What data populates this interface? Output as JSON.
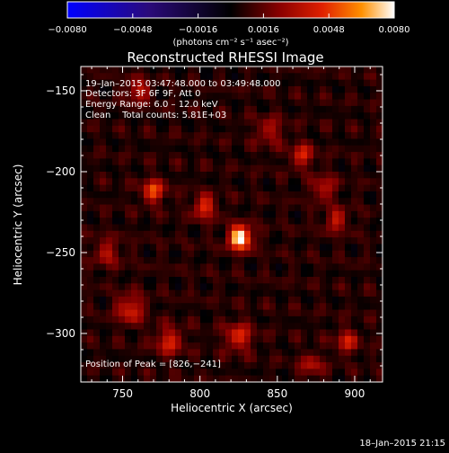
{
  "chart_data": {
    "type": "heatmap",
    "title": "Reconstructed RHESSI Image",
    "xlabel": "Heliocentric X (arcsec)",
    "ylabel": "Heliocentric Y (arcsec)",
    "xlim": [
      723,
      918
    ],
    "ylim": [
      -330,
      -135
    ],
    "x_ticks": [
      750,
      800,
      850,
      900
    ],
    "x_tick_labels": [
      "750",
      "800",
      "850",
      "900"
    ],
    "y_ticks": [
      -150,
      -200,
      -250,
      -300
    ],
    "y_tick_labels": [
      "−150",
      "−200",
      "−250",
      "−300"
    ],
    "info_lines": [
      "19–Jan–2015 03:47:48.000 to 03:49:48.000",
      "Detectors: 3F 6F 9F, Att 0",
      "Energy Range: 6.0 – 12.0 keV",
      "Clean    Total counts: 5.81E+03"
    ],
    "peak_label": "Position of Peak = [826,−241]",
    "peak": [
      826,
      -241
    ],
    "colorbar": {
      "min": -0.008,
      "max": 0.008,
      "ticks": [
        -0.008,
        -0.0048,
        -0.0016,
        0.0016,
        0.0048,
        0.008
      ],
      "tick_labels": [
        "−0.0080",
        "−0.0048",
        "−0.0016",
        "0.0016",
        "0.0048",
        "0.0080"
      ],
      "units": "(photons cm⁻² s⁻¹ asec⁻²)"
    },
    "sources": [
      {
        "x": 826,
        "y": -241,
        "amp": 0.008,
        "sigma": 5
      },
      {
        "x": 770,
        "y": -212,
        "amp": 0.0044,
        "sigma": 5
      },
      {
        "x": 803,
        "y": -222,
        "amp": 0.004,
        "sigma": 5
      },
      {
        "x": 760,
        "y": -150,
        "amp": 0.0032,
        "sigma": 5
      },
      {
        "x": 755,
        "y": -285,
        "amp": 0.0036,
        "sigma": 6
      },
      {
        "x": 780,
        "y": -305,
        "amp": 0.0034,
        "sigma": 6
      },
      {
        "x": 825,
        "y": -302,
        "amp": 0.0036,
        "sigma": 6
      },
      {
        "x": 866,
        "y": -190,
        "amp": 0.0035,
        "sigma": 5
      },
      {
        "x": 880,
        "y": -210,
        "amp": 0.003,
        "sigma": 5
      },
      {
        "x": 888,
        "y": -230,
        "amp": 0.003,
        "sigma": 5
      },
      {
        "x": 895,
        "y": -305,
        "amp": 0.0032,
        "sigma": 5
      },
      {
        "x": 872,
        "y": -320,
        "amp": 0.0026,
        "sigma": 5
      },
      {
        "x": 740,
        "y": -250,
        "amp": 0.0024,
        "sigma": 6
      },
      {
        "x": 845,
        "y": -175,
        "amp": 0.0024,
        "sigma": 6
      }
    ]
  },
  "footer": {
    "timestamp": "18–Jan–2015 21:15"
  }
}
